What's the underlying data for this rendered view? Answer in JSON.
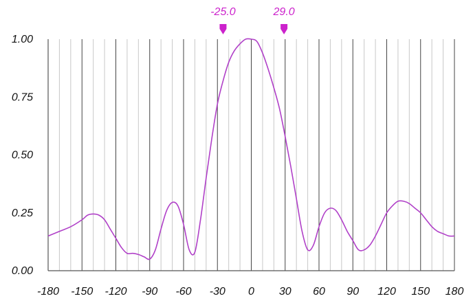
{
  "chart_data": {
    "type": "line",
    "title": "",
    "xlabel": "",
    "ylabel": "",
    "xlim": [
      -180,
      180
    ],
    "ylim": [
      0,
      1
    ],
    "grid": true,
    "x_ticks": [
      -180,
      -150,
      -120,
      -90,
      -60,
      -30,
      0,
      30,
      60,
      90,
      120,
      150,
      180
    ],
    "x_tick_labels": [
      "-180",
      "-150",
      "-120",
      "-90",
      "-60",
      "-30",
      "0",
      "30",
      "60",
      "90",
      "120",
      "150",
      "180"
    ],
    "y_ticks": [
      0,
      0.25,
      0.5,
      0.75,
      1.0
    ],
    "y_tick_labels": [
      "0.00",
      "0.25",
      "0.50",
      "0.75",
      "1.00"
    ],
    "line_color": "#b040c8",
    "marker_color": "#cc22cc",
    "markers": [
      {
        "x": -25.0,
        "label": "-25.0"
      },
      {
        "x": 29.0,
        "label": "29.0"
      }
    ],
    "series": [
      {
        "x": [
          -180,
          -170,
          -160,
          -150,
          -145,
          -140,
          -135,
          -130,
          -125,
          -120,
          -115,
          -110,
          -105,
          -100,
          -95,
          -90,
          -85,
          -80,
          -75,
          -70,
          -65,
          -60,
          -55,
          -50,
          -45,
          -40,
          -35,
          -30,
          -25,
          -20,
          -15,
          -10,
          -5,
          0,
          5,
          10,
          15,
          20,
          25,
          30,
          35,
          40,
          45,
          50,
          55,
          60,
          65,
          70,
          75,
          80,
          85,
          90,
          95,
          100,
          105,
          110,
          115,
          120,
          125,
          130,
          135,
          140,
          145,
          150,
          155,
          160,
          165,
          170,
          175,
          180
        ],
        "y": [
          0.15,
          0.17,
          0.19,
          0.22,
          0.24,
          0.245,
          0.24,
          0.22,
          0.18,
          0.14,
          0.1,
          0.075,
          0.075,
          0.07,
          0.06,
          0.05,
          0.09,
          0.18,
          0.26,
          0.295,
          0.28,
          0.2,
          0.09,
          0.08,
          0.22,
          0.4,
          0.57,
          0.72,
          0.82,
          0.9,
          0.95,
          0.98,
          1.0,
          1.0,
          0.99,
          0.94,
          0.87,
          0.79,
          0.7,
          0.58,
          0.45,
          0.31,
          0.17,
          0.09,
          0.11,
          0.19,
          0.25,
          0.27,
          0.26,
          0.22,
          0.17,
          0.13,
          0.09,
          0.09,
          0.11,
          0.15,
          0.2,
          0.25,
          0.28,
          0.3,
          0.3,
          0.29,
          0.27,
          0.25,
          0.22,
          0.19,
          0.17,
          0.16,
          0.15,
          0.15
        ]
      }
    ]
  }
}
